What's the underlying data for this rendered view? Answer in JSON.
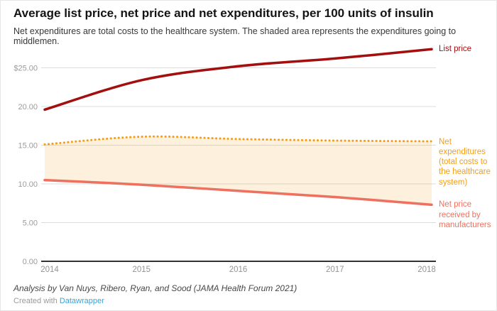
{
  "header": {
    "title": "Average list price, net price and net expenditures, per 100 units of insulin",
    "subtitle": "Net expenditures are total costs to the healthcare system. The shaded area represents the expenditures going to middlemen."
  },
  "chart_data": {
    "type": "line",
    "title": "Average list price, net price and net expenditures, per 100 units of insulin",
    "x": [
      2014,
      2015,
      2016,
      2017,
      2018
    ],
    "x_ticks": [
      "2014",
      "2015",
      "2016",
      "2017",
      "2018"
    ],
    "series": [
      {
        "name": "List price",
        "values": [
          19.6,
          23.4,
          25.2,
          26.2,
          27.4
        ],
        "color": "#a30e0e",
        "style": "solid",
        "label": "List price"
      },
      {
        "name": "Net expenditures (total costs to the healthcare system)",
        "values": [
          15.1,
          16.1,
          15.8,
          15.6,
          15.5
        ],
        "color": "#f49d15",
        "style": "dotted",
        "label": "Net\nexpenditures\n(total costs to\nthe healthcare\nsystem)"
      },
      {
        "name": "Net price received by manufacturers",
        "values": [
          10.5,
          9.9,
          9.1,
          8.3,
          7.3
        ],
        "color": "#ee7160",
        "style": "solid",
        "label": "Net price\nreceived by\nmanufacturers"
      }
    ],
    "area_between": {
      "upper": "Net expenditures (total costs to the healthcare system)",
      "lower": "Net price received by manufacturers",
      "fill": "rgba(244,157,26,0.15)"
    },
    "y_ticks": [
      "0.00",
      "5.00",
      "10.00",
      "15.00",
      "20.00",
      "$25.00"
    ],
    "y_tick_values": [
      0,
      5,
      10,
      15,
      20,
      25
    ],
    "ylim": [
      0,
      27.8
    ],
    "grid": "horizontal",
    "legend_position": "right-edge-labels",
    "colors": {
      "gridline": "#dcdcdc",
      "axis_line": "#333333",
      "tick_label": "#9b9b9b",
      "x_tick_label": "#949494"
    }
  },
  "footer": {
    "byline": "Analysis by Van Nuys, Ribero, Ryan, and Sood (JAMA Health Forum 2021)",
    "credit_prefix": "Created with ",
    "credit_link": "Datawrapper",
    "credit_link_color": "#3aa3d9"
  }
}
